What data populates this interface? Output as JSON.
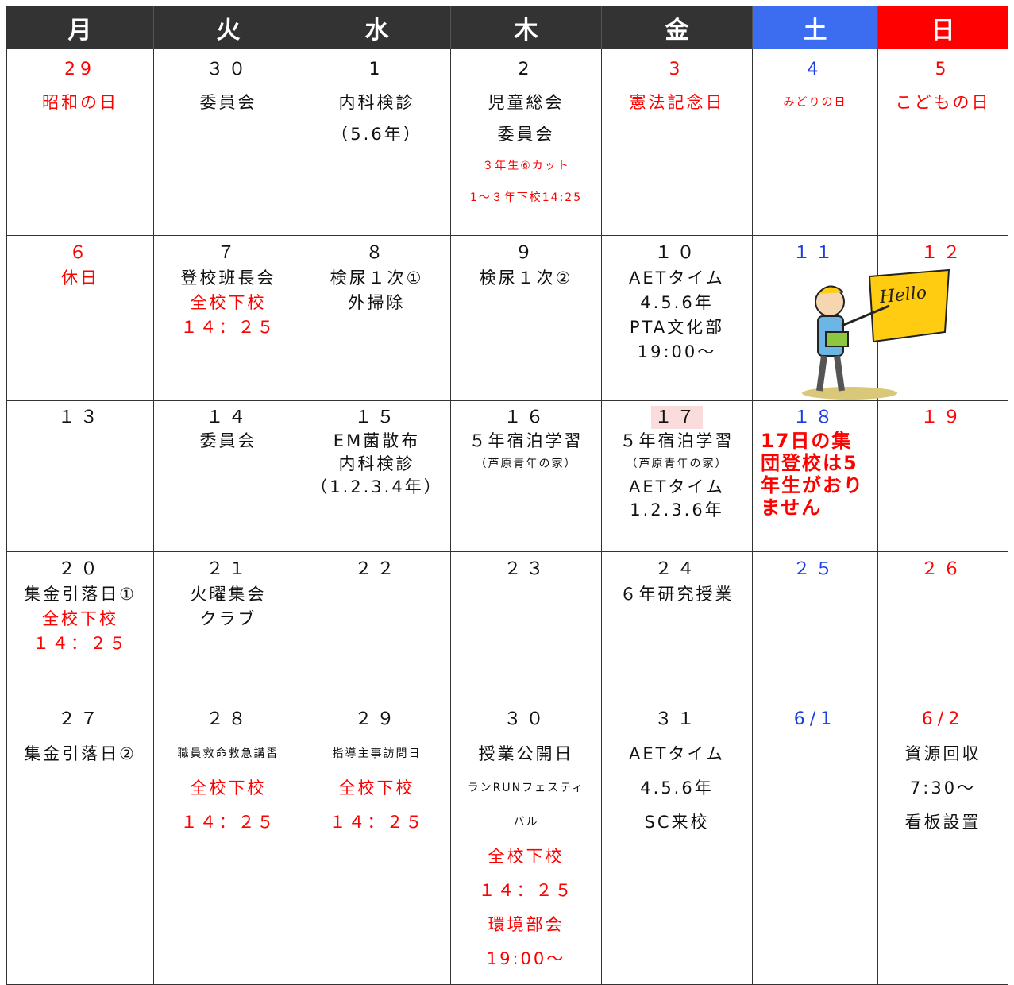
{
  "calendar": {
    "header": [
      {
        "text": "月",
        "color": "#333333"
      },
      {
        "text": "火",
        "color": "#333333"
      },
      {
        "text": "水",
        "color": "#333333"
      },
      {
        "text": "木",
        "color": "#333333"
      },
      {
        "text": "金",
        "color": "#333333"
      },
      {
        "text": "土",
        "color": "#3c6cf0"
      },
      {
        "text": "日",
        "color": "#ff0000"
      }
    ],
    "illustration_text": "Hello",
    "weeks": [
      [
        {
          "date": "29",
          "date_color": "#ff0000",
          "lines": [
            {
              "text": "昭和の日",
              "color": "#ff0000"
            }
          ]
        },
        {
          "date": "３０",
          "lines": [
            {
              "text": "委員会"
            }
          ]
        },
        {
          "date": "1",
          "lines": [
            {
              "text": "内科検診"
            },
            {
              "text": "（5.6年）"
            }
          ]
        },
        {
          "date": "2",
          "lines": [
            {
              "text": "児童総会"
            },
            {
              "text": "委員会"
            },
            {
              "text": "３年生⑥カット",
              "color": "#ff0000"
            },
            {
              "text": "1～３年下校14:25",
              "color": "#ff0000"
            }
          ]
        },
        {
          "date": "3",
          "date_color": "#ff0000",
          "lines": [
            {
              "text": "憲法記念日",
              "color": "#ff0000"
            }
          ]
        },
        {
          "date": "4",
          "date_color": "#1a3fe0",
          "lines": [
            {
              "text": "みどりの日",
              "color": "#ff0000"
            }
          ]
        },
        {
          "date": "5",
          "date_color": "#ff0000",
          "lines": [
            {
              "text": "こどもの日",
              "color": "#ff0000"
            }
          ]
        }
      ],
      [
        {
          "date": "６",
          "date_color": "#ff0000",
          "lines": [
            {
              "text": "休日",
              "color": "#ff0000"
            }
          ]
        },
        {
          "date": "７",
          "lines": [
            {
              "text": "登校班長会"
            },
            {
              "text": "全校下校",
              "color": "#ff0000"
            },
            {
              "text": "１４：２５",
              "color": "#ff0000"
            }
          ]
        },
        {
          "date": "８",
          "lines": [
            {
              "text": "検尿１次①"
            },
            {
              "text": "外掃除"
            }
          ]
        },
        {
          "date": "９",
          "lines": [
            {
              "text": "検尿１次②"
            }
          ]
        },
        {
          "date": "１０",
          "lines": [
            {
              "text": "AETタイム"
            },
            {
              "text": "4.5.6年"
            },
            {
              "text": "PTA文化部"
            },
            {
              "text": "19:00～"
            }
          ]
        },
        {
          "date": "１１",
          "date_color": "#1a3fe0",
          "lines": []
        },
        {
          "date": "１２",
          "date_color": "#ff0000",
          "lines": []
        }
      ],
      [
        {
          "date": "１３",
          "lines": []
        },
        {
          "date": "１４",
          "lines": [
            {
              "text": "委員会"
            }
          ]
        },
        {
          "date": "１５",
          "lines": [
            {
              "text": "EM菌散布"
            },
            {
              "text": "内科検診"
            },
            {
              "text": "（1.2.3.4年）"
            }
          ]
        },
        {
          "date": "１６",
          "lines": [
            {
              "text": "５年宿泊学習"
            },
            {
              "text": "（芦原青年の家）"
            }
          ]
        },
        {
          "date": "１７",
          "highlight": "#fadcdc",
          "lines": [
            {
              "text": "５年宿泊学習"
            },
            {
              "text": "（芦原青年の家）"
            },
            {
              "text": "AETタイム"
            },
            {
              "text": "1.2.3.6年"
            }
          ]
        },
        {
          "date": "１８",
          "date_color": "#1a3fe0",
          "lines": [
            {
              "text": "17日の集団登校は5年生がおりません",
              "color": "#ff0000"
            }
          ]
        },
        {
          "date": "１９",
          "date_color": "#ff0000",
          "lines": []
        }
      ],
      [
        {
          "date": "２０",
          "lines": [
            {
              "text": "集金引落日①"
            },
            {
              "text": "全校下校",
              "color": "#ff0000"
            },
            {
              "text": "１４：２５",
              "color": "#ff0000"
            }
          ]
        },
        {
          "date": "２１",
          "lines": [
            {
              "text": "火曜集会"
            },
            {
              "text": "クラブ"
            }
          ]
        },
        {
          "date": "２２",
          "lines": []
        },
        {
          "date": "２３",
          "lines": []
        },
        {
          "date": "２４",
          "lines": [
            {
              "text": "６年研究授業"
            }
          ]
        },
        {
          "date": "２５",
          "date_color": "#1a3fe0",
          "lines": []
        },
        {
          "date": "２６",
          "date_color": "#ff0000",
          "lines": []
        }
      ],
      [
        {
          "date": "２７",
          "lines": [
            {
              "text": "集金引落日②"
            }
          ]
        },
        {
          "date": "２８",
          "lines": [
            {
              "text": "職員救命救急講習"
            },
            {
              "text": "全校下校",
              "color": "#ff0000"
            },
            {
              "text": "１４：２５",
              "color": "#ff0000"
            }
          ]
        },
        {
          "date": "２９",
          "lines": [
            {
              "text": "指導主事訪問日"
            },
            {
              "text": "全校下校",
              "color": "#ff0000"
            },
            {
              "text": "１４：２５",
              "color": "#ff0000"
            }
          ]
        },
        {
          "date": "３０",
          "lines": [
            {
              "text": "授業公開日"
            },
            {
              "text": "ランRUNフェスティバル"
            },
            {
              "text": "全校下校",
              "color": "#ff0000"
            },
            {
              "text": "１４：２５",
              "color": "#ff0000"
            },
            {
              "text": "環境部会",
              "color": "#ff0000"
            },
            {
              "text": "19:00～",
              "color": "#ff0000"
            }
          ]
        },
        {
          "date": "３１",
          "lines": [
            {
              "text": "AETタイム"
            },
            {
              "text": "4.5.6年"
            },
            {
              "text": "SC来校"
            }
          ]
        },
        {
          "date": "6/1",
          "date_color": "#1a3fe0",
          "lines": []
        },
        {
          "date": "6/2",
          "date_color": "#ff0000",
          "lines": [
            {
              "text": "資源回収"
            },
            {
              "text": "7:30～"
            },
            {
              "text": "看板設置"
            }
          ]
        }
      ]
    ]
  }
}
